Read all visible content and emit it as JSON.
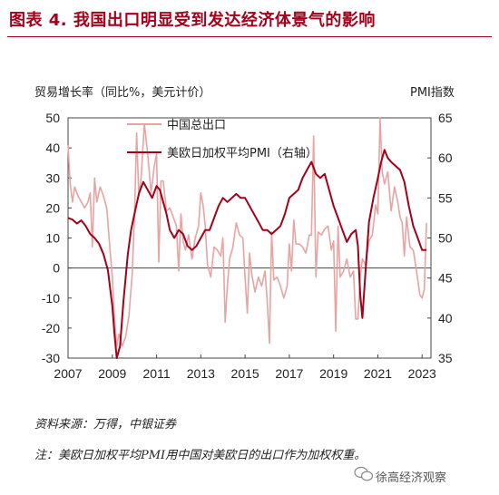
{
  "figure": {
    "title": "图表 4.   我国出口明显受到发达经济体景气的影响",
    "source": "资料来源：万得，中银证券",
    "note": "注：美欧日加权平均PMI用中国对美欧日的出口作为加权权重。",
    "watermark": "徐高经济观察"
  },
  "colors": {
    "export": "#e8a3a3",
    "pmi": "#a3001a",
    "title": "#a3001a"
  },
  "chart_data": {
    "type": "line",
    "ylabel_left": "贸易增长率（同比%，美元计价）",
    "ylabel_right": "PMI指数",
    "ylim_left": [
      -30,
      50
    ],
    "ylim_right": [
      35,
      65
    ],
    "yticks_left": [
      "50",
      "40",
      "30",
      "20",
      "10",
      "0",
      "-10",
      "-20",
      "-30"
    ],
    "yticks_right": [
      "65",
      "60",
      "55",
      "50",
      "45",
      "40",
      "35"
    ],
    "xlim": [
      2007,
      2023.4
    ],
    "xticks": [
      "2007",
      "2009",
      "2011",
      "2013",
      "2015",
      "2017",
      "2019",
      "2021",
      "2023"
    ],
    "legend_placement": "top-center",
    "series": [
      {
        "name": "中国总出口",
        "axis": "left",
        "points": [
          [
            2007.0,
            41
          ],
          [
            2007.1,
            28
          ],
          [
            2007.2,
            22
          ],
          [
            2007.3,
            27
          ],
          [
            2007.45,
            24
          ],
          [
            2007.6,
            22
          ],
          [
            2007.75,
            20
          ],
          [
            2007.9,
            22
          ],
          [
            2008.0,
            25
          ],
          [
            2008.1,
            7
          ],
          [
            2008.2,
            30
          ],
          [
            2008.3,
            22
          ],
          [
            2008.45,
            27
          ],
          [
            2008.6,
            24
          ],
          [
            2008.75,
            20
          ],
          [
            2008.9,
            6
          ],
          [
            2009.0,
            -3
          ],
          [
            2009.1,
            -17
          ],
          [
            2009.2,
            -26
          ],
          [
            2009.3,
            -22
          ],
          [
            2009.45,
            -26
          ],
          [
            2009.6,
            -23
          ],
          [
            2009.75,
            -16
          ],
          [
            2009.9,
            -2
          ],
          [
            2010.0,
            17
          ],
          [
            2010.1,
            45
          ],
          [
            2010.2,
            24
          ],
          [
            2010.3,
            30
          ],
          [
            2010.45,
            48
          ],
          [
            2010.6,
            38
          ],
          [
            2010.75,
            25
          ],
          [
            2010.9,
            34
          ],
          [
            2011.0,
            38
          ],
          [
            2011.1,
            2
          ],
          [
            2011.2,
            29
          ],
          [
            2011.3,
            29
          ],
          [
            2011.45,
            19
          ],
          [
            2011.6,
            20
          ],
          [
            2011.75,
            17
          ],
          [
            2011.9,
            14
          ],
          [
            2012.0,
            -1
          ],
          [
            2012.1,
            18
          ],
          [
            2012.2,
            9
          ],
          [
            2012.3,
            6
          ],
          [
            2012.45,
            11
          ],
          [
            2012.6,
            3
          ],
          [
            2012.75,
            10
          ],
          [
            2012.9,
            14
          ],
          [
            2013.0,
            25
          ],
          [
            2013.1,
            21
          ],
          [
            2013.2,
            14
          ],
          [
            2013.3,
            1
          ],
          [
            2013.45,
            -3
          ],
          [
            2013.6,
            7
          ],
          [
            2013.75,
            6
          ],
          [
            2013.9,
            4
          ],
          [
            2014.0,
            10
          ],
          [
            2014.1,
            -18
          ],
          [
            2014.2,
            -6
          ],
          [
            2014.3,
            3
          ],
          [
            2014.45,
            7
          ],
          [
            2014.6,
            15
          ],
          [
            2014.75,
            11
          ],
          [
            2014.9,
            10
          ],
          [
            2015.0,
            -3
          ],
          [
            2015.1,
            -15
          ],
          [
            2015.2,
            5
          ],
          [
            2015.3,
            -2
          ],
          [
            2015.45,
            -8
          ],
          [
            2015.6,
            -3
          ],
          [
            2015.75,
            -6
          ],
          [
            2015.9,
            -1
          ],
          [
            2016.0,
            -11
          ],
          [
            2016.1,
            -25
          ],
          [
            2016.2,
            12
          ],
          [
            2016.3,
            -4
          ],
          [
            2016.45,
            -3
          ],
          [
            2016.6,
            -6
          ],
          [
            2016.75,
            -10
          ],
          [
            2016.9,
            -6
          ],
          [
            2017.0,
            8
          ],
          [
            2017.1,
            -1
          ],
          [
            2017.2,
            16
          ],
          [
            2017.3,
            8
          ],
          [
            2017.45,
            8
          ],
          [
            2017.6,
            7
          ],
          [
            2017.75,
            5
          ],
          [
            2017.9,
            11
          ],
          [
            2018.0,
            11
          ],
          [
            2018.1,
            44
          ],
          [
            2018.2,
            -3
          ],
          [
            2018.3,
            12
          ],
          [
            2018.45,
            11
          ],
          [
            2018.6,
            13
          ],
          [
            2018.75,
            14
          ],
          [
            2018.9,
            6
          ],
          [
            2019.0,
            9
          ],
          [
            2019.1,
            -21
          ],
          [
            2019.2,
            14
          ],
          [
            2019.3,
            -3
          ],
          [
            2019.45,
            -1
          ],
          [
            2019.6,
            3
          ],
          [
            2019.75,
            -3
          ],
          [
            2019.9,
            -1
          ],
          [
            2020.0,
            -17
          ],
          [
            2020.1,
            -17
          ],
          [
            2020.2,
            -3
          ],
          [
            2020.3,
            3
          ],
          [
            2020.45,
            1
          ],
          [
            2020.6,
            9
          ],
          [
            2020.75,
            11
          ],
          [
            2020.9,
            21
          ],
          [
            2021.0,
            18
          ],
          [
            2021.1,
            60
          ],
          [
            2021.2,
            32
          ],
          [
            2021.3,
            28
          ],
          [
            2021.45,
            32
          ],
          [
            2021.6,
            19
          ],
          [
            2021.75,
            27
          ],
          [
            2021.9,
            22
          ],
          [
            2022.0,
            17
          ],
          [
            2022.1,
            15
          ],
          [
            2022.2,
            4
          ],
          [
            2022.3,
            17
          ],
          [
            2022.45,
            7
          ],
          [
            2022.6,
            6
          ],
          [
            2022.75,
            -1
          ],
          [
            2022.9,
            -9
          ],
          [
            2023.0,
            -10
          ],
          [
            2023.1,
            -7
          ],
          [
            2023.2,
            15
          ]
        ]
      },
      {
        "name": "美欧日加权平均PMI（右轴）",
        "axis": "right",
        "points": [
          [
            2007.0,
            52.5
          ],
          [
            2007.2,
            52.3
          ],
          [
            2007.4,
            51.8
          ],
          [
            2007.6,
            52.2
          ],
          [
            2007.8,
            51.5
          ],
          [
            2008.0,
            50.5
          ],
          [
            2008.2,
            50.0
          ],
          [
            2008.4,
            49.3
          ],
          [
            2008.6,
            48.0
          ],
          [
            2008.8,
            46.0
          ],
          [
            2009.0,
            41.5
          ],
          [
            2009.1,
            38.0
          ],
          [
            2009.2,
            35.0
          ],
          [
            2009.35,
            36.5
          ],
          [
            2009.5,
            42.0
          ],
          [
            2009.7,
            48.0
          ],
          [
            2009.85,
            51.0
          ],
          [
            2010.0,
            53.0
          ],
          [
            2010.2,
            55.5
          ],
          [
            2010.4,
            57.0
          ],
          [
            2010.6,
            56.0
          ],
          [
            2010.8,
            55.0
          ],
          [
            2011.0,
            56.5
          ],
          [
            2011.15,
            56.0
          ],
          [
            2011.3,
            54.5
          ],
          [
            2011.45,
            53.0
          ],
          [
            2011.6,
            51.0
          ],
          [
            2011.8,
            50.0
          ],
          [
            2012.0,
            51.0
          ],
          [
            2012.2,
            50.5
          ],
          [
            2012.4,
            49.0
          ],
          [
            2012.6,
            48.5
          ],
          [
            2012.8,
            49.0
          ],
          [
            2013.0,
            50.0
          ],
          [
            2013.2,
            51.0
          ],
          [
            2013.4,
            51.0
          ],
          [
            2013.6,
            52.5
          ],
          [
            2013.8,
            54.0
          ],
          [
            2014.0,
            55.0
          ],
          [
            2014.2,
            54.5
          ],
          [
            2014.4,
            55.0
          ],
          [
            2014.6,
            55.5
          ],
          [
            2014.8,
            55.0
          ],
          [
            2015.0,
            55.0
          ],
          [
            2015.2,
            54.0
          ],
          [
            2015.4,
            53.0
          ],
          [
            2015.6,
            52.0
          ],
          [
            2015.8,
            51.0
          ],
          [
            2016.0,
            51.0
          ],
          [
            2016.2,
            50.5
          ],
          [
            2016.4,
            51.0
          ],
          [
            2016.6,
            51.5
          ],
          [
            2016.8,
            53.0
          ],
          [
            2017.0,
            55.0
          ],
          [
            2017.2,
            55.5
          ],
          [
            2017.4,
            56.0
          ],
          [
            2017.6,
            57.5
          ],
          [
            2017.8,
            58.5
          ],
          [
            2018.0,
            59.5
          ],
          [
            2018.2,
            58.0
          ],
          [
            2018.4,
            57.5
          ],
          [
            2018.6,
            58.0
          ],
          [
            2018.8,
            56.0
          ],
          [
            2019.0,
            54.0
          ],
          [
            2019.2,
            52.5
          ],
          [
            2019.4,
            51.0
          ],
          [
            2019.6,
            49.5
          ],
          [
            2019.8,
            50.5
          ],
          [
            2020.0,
            51.0
          ],
          [
            2020.1,
            49.0
          ],
          [
            2020.2,
            43.0
          ],
          [
            2020.3,
            40.0
          ],
          [
            2020.45,
            46.0
          ],
          [
            2020.6,
            52.0
          ],
          [
            2020.8,
            55.0
          ],
          [
            2021.0,
            57.5
          ],
          [
            2021.15,
            59.5
          ],
          [
            2021.3,
            61.0
          ],
          [
            2021.45,
            60.0
          ],
          [
            2021.6,
            59.5
          ],
          [
            2021.8,
            59.0
          ],
          [
            2022.0,
            58.5
          ],
          [
            2022.2,
            57.0
          ],
          [
            2022.4,
            54.0
          ],
          [
            2022.6,
            51.5
          ],
          [
            2022.8,
            50.0
          ],
          [
            2023.0,
            48.5
          ],
          [
            2023.2,
            48.5
          ]
        ]
      }
    ]
  }
}
